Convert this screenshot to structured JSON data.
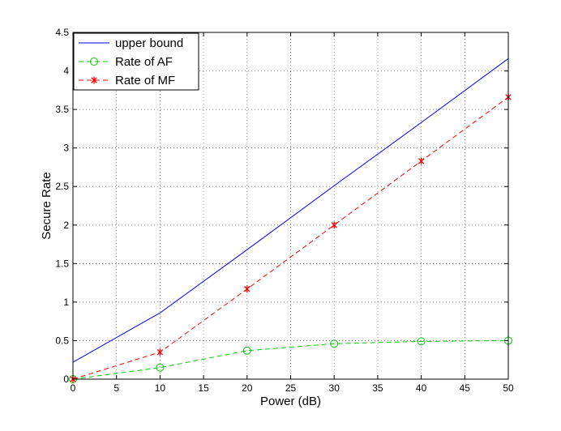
{
  "chart_data": {
    "type": "line",
    "title": "",
    "xlabel": "Power (dB)",
    "ylabel": "Secure Rate",
    "xlim": [
      0,
      50
    ],
    "ylim": [
      0,
      4.5
    ],
    "xticks": [
      0,
      5,
      10,
      15,
      20,
      25,
      30,
      35,
      40,
      45,
      50
    ],
    "yticks": [
      0,
      0.5,
      1,
      1.5,
      2,
      2.5,
      3,
      3.5,
      4,
      4.5
    ],
    "grid": true,
    "legend_position": "top-left",
    "series": [
      {
        "name": "upper bound",
        "color": "#0000ff",
        "line_style": "solid",
        "marker": "none",
        "x": [
          0,
          10,
          20,
          30,
          40,
          50
        ],
        "y": [
          0.22,
          0.86,
          1.68,
          2.51,
          3.33,
          4.16
        ]
      },
      {
        "name": "Rate of AF",
        "color": "#00cc00",
        "line_style": "dashed",
        "marker": "circle",
        "x": [
          0,
          10,
          20,
          30,
          40,
          50
        ],
        "y": [
          0.0,
          0.15,
          0.37,
          0.46,
          0.49,
          0.5
        ]
      },
      {
        "name": "Rate of MF",
        "color": "#ff0000",
        "line_style": "dashed",
        "marker": "asterisk",
        "x": [
          0,
          10,
          20,
          30,
          40,
          50
        ],
        "y": [
          0.0,
          0.35,
          1.17,
          2.0,
          2.83,
          3.66
        ]
      }
    ]
  }
}
